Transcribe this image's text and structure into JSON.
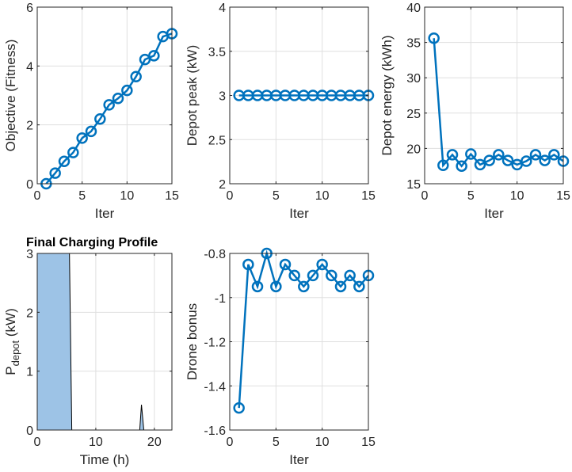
{
  "figure": {
    "background": "#ffffff"
  },
  "chart_data": [
    {
      "id": "objective",
      "type": "line",
      "title": "",
      "xlabel": "Iter",
      "ylabel": "Objective (Fitness)",
      "xlim": [
        0,
        15
      ],
      "ylim": [
        0,
        6
      ],
      "xticks": [
        0,
        5,
        10,
        15
      ],
      "yticks": [
        0,
        2,
        4,
        6
      ],
      "grid": true,
      "marker": "circle",
      "color": "#0072BD",
      "x": [
        1,
        2,
        3,
        4,
        5,
        6,
        7,
        8,
        9,
        10,
        11,
        12,
        13,
        14,
        15
      ],
      "y": [
        0.0,
        0.36,
        0.76,
        1.06,
        1.55,
        1.78,
        2.2,
        2.68,
        2.9,
        3.17,
        3.64,
        4.22,
        4.35,
        5.0,
        5.1
      ]
    },
    {
      "id": "depot_peak",
      "type": "line",
      "title": "",
      "xlabel": "Iter",
      "ylabel": "Depot peak (kW)",
      "xlim": [
        0,
        15
      ],
      "ylim": [
        2,
        4
      ],
      "xticks": [
        0,
        5,
        10,
        15
      ],
      "yticks": [
        2,
        2.5,
        3,
        3.5,
        4
      ],
      "grid": true,
      "marker": "circle",
      "color": "#0072BD",
      "x": [
        1,
        2,
        3,
        4,
        5,
        6,
        7,
        8,
        9,
        10,
        11,
        12,
        13,
        14,
        15
      ],
      "y": [
        3,
        3,
        3,
        3,
        3,
        3,
        3,
        3,
        3,
        3,
        3,
        3,
        3,
        3,
        3
      ]
    },
    {
      "id": "depot_energy",
      "type": "line",
      "title": "",
      "xlabel": "Iter",
      "ylabel": "Depot energy (kWh)",
      "xlim": [
        0,
        15
      ],
      "ylim": [
        15,
        40
      ],
      "xticks": [
        0,
        5,
        10,
        15
      ],
      "yticks": [
        15,
        20,
        25,
        30,
        35,
        40
      ],
      "grid": true,
      "marker": "circle",
      "color": "#0072BD",
      "x": [
        1,
        2,
        3,
        4,
        5,
        6,
        7,
        8,
        9,
        10,
        11,
        12,
        13,
        14,
        15
      ],
      "y": [
        35.6,
        17.6,
        19.1,
        17.5,
        19.2,
        17.7,
        18.3,
        19.1,
        18.3,
        17.7,
        18.2,
        19.1,
        18.3,
        19.1,
        18.2
      ]
    },
    {
      "id": "charging_profile",
      "type": "area",
      "title": "Final Charging Profile",
      "xlabel": "Time (h)",
      "ylabel": "P",
      "ylabel_sub": "depot",
      "ylabel_unit": " (kW)",
      "xlim": [
        0,
        23
      ],
      "ylim": [
        0,
        3
      ],
      "xticks": [
        0,
        10,
        20
      ],
      "yticks": [
        0,
        1,
        2,
        3
      ],
      "grid": true,
      "fill": "#9DC3E6",
      "x": [
        0,
        5.5,
        5.9,
        17.5,
        17.8,
        18.2,
        23
      ],
      "y": [
        3,
        3,
        0,
        0,
        0.43,
        0,
        0
      ]
    },
    {
      "id": "drone_bonus",
      "type": "line",
      "title": "",
      "xlabel": "Iter",
      "ylabel": "Drone bonus",
      "xlim": [
        0,
        15
      ],
      "ylim": [
        -1.6,
        -0.8
      ],
      "xticks": [
        0,
        5,
        10,
        15
      ],
      "yticks": [
        -1.6,
        -1.4,
        -1.2,
        -1,
        -0.8
      ],
      "grid": true,
      "marker": "circle",
      "color": "#0072BD",
      "x": [
        1,
        2,
        3,
        4,
        5,
        6,
        7,
        8,
        9,
        10,
        11,
        12,
        13,
        14,
        15
      ],
      "y": [
        -1.5,
        -0.85,
        -0.95,
        -0.8,
        -0.95,
        -0.85,
        -0.9,
        -0.95,
        -0.9,
        -0.85,
        -0.9,
        -0.95,
        -0.9,
        -0.95,
        -0.9
      ]
    }
  ]
}
